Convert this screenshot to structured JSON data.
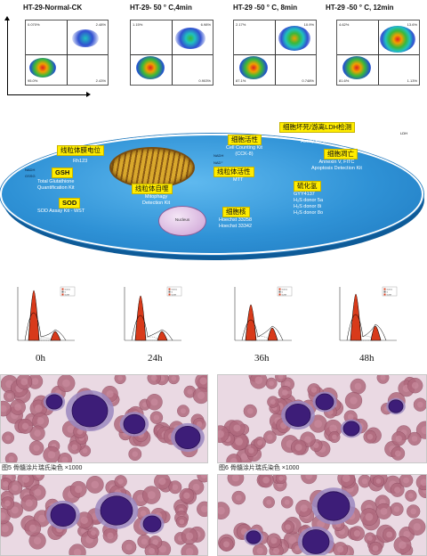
{
  "flow_cytometry": {
    "panels": [
      {
        "title": "HT-29-Normal-CK",
        "q_ul": "0.070%",
        "q_ur": "2.48%",
        "q_ll": "95.0%",
        "q_lr": "2.43%"
      },
      {
        "title": "HT-29- 50 ° C,4min",
        "q_ul": "1.15%",
        "q_ur": "6.98%",
        "q_ll": "",
        "q_lr": "0.903%"
      },
      {
        "title": "HT-29 -50 ° C, 8min",
        "q_ul": "2.17%",
        "q_ur": "10.9%",
        "q_ll": "87.1%",
        "q_lr": "0.748%"
      },
      {
        "title": "HT-29 -50 ° C, 12min",
        "q_ul": "4.62%",
        "q_ur": "13.6%",
        "q_ll": "81.6%",
        "q_lr": "1.13%"
      }
    ]
  },
  "diagram": {
    "membrane_potential": {
      "label": "线粒体膜电位",
      "sub": "Rh123"
    },
    "gsh": {
      "label": "GSH",
      "sub": "Total Glutathione\nQuantification Kit",
      "small_a": "NADH",
      "small_b": "GSSG"
    },
    "sod": {
      "label": "SOD",
      "sub": "SOD Assay Kit - WST"
    },
    "cell_viability": {
      "label": "细胞活性",
      "sub": "Cell Counting Kit\n(CCK-8)",
      "small_a": "NADH",
      "small_b": "NAD⁺"
    },
    "ldh": {
      "label": "细胞坏死/游离LDH检测",
      "sub": "Cytotoxicity\nAssay Kit-WST",
      "outside": "LDH"
    },
    "apoptosis": {
      "label": "细胞凋亡",
      "sub": "Annexin V, FITC\nApoptosis Detection Kit"
    },
    "mito_activity": {
      "label": "线粒体活性",
      "sub": "MTT"
    },
    "mitophagy": {
      "label": "线粒体自噬",
      "sub": "Mitophagy\nDetection Kit"
    },
    "h2s": {
      "label": "硫化氢",
      "sub": "GYY4137\nH₂S donor 5a\nH₂S donor 8i\nH₂S donor 8o"
    },
    "nucleus": {
      "label": "细胞核",
      "sub": "Hoechst 33258\nHoechst 33342",
      "organelle": "Nucleus"
    }
  },
  "histograms": {
    "labels": [
      "0h",
      "24h",
      "36h",
      "48h"
    ],
    "legend": [
      "G0/G1",
      "S",
      "G2/M"
    ],
    "colors": {
      "g1": "#d83a1a",
      "s": "#666666",
      "g2": "#d83a1a"
    }
  },
  "micrographs": {
    "caption_5": "图5  骨髓涂片瑞氏染色 ×1000",
    "caption_6": "图6  骨髓涂片瑞氏染色 ×1000"
  }
}
